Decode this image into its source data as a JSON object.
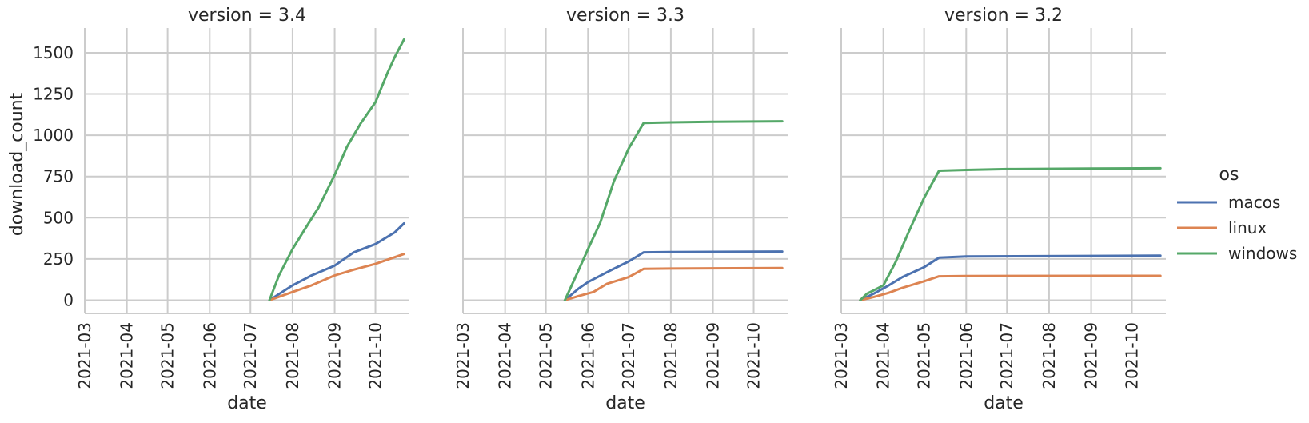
{
  "chart_data": [
    {
      "type": "line",
      "title": "version = 3.4",
      "xlabel": "date",
      "ylabel": "download_count",
      "xlim": [
        "2021-03-01",
        "2021-10-26"
      ],
      "ylim": [
        -80,
        1650
      ],
      "x_ticks": [
        "2021-03",
        "2021-04",
        "2021-05",
        "2021-06",
        "2021-07",
        "2021-08",
        "2021-09",
        "2021-10"
      ],
      "y_ticks": [
        0,
        250,
        500,
        750,
        1000,
        1250,
        1500
      ],
      "grid": true,
      "series": [
        {
          "name": "macos",
          "x": [
            "2021-07-15",
            "2021-08-01",
            "2021-08-15",
            "2021-09-01",
            "2021-09-15",
            "2021-10-01",
            "2021-10-15",
            "2021-10-22"
          ],
          "y": [
            0,
            90,
            150,
            210,
            290,
            340,
            410,
            465
          ]
        },
        {
          "name": "linux",
          "x": [
            "2021-07-15",
            "2021-08-01",
            "2021-08-15",
            "2021-09-01",
            "2021-09-15",
            "2021-10-01",
            "2021-10-15",
            "2021-10-22"
          ],
          "y": [
            0,
            50,
            90,
            150,
            185,
            220,
            260,
            280
          ]
        },
        {
          "name": "windows",
          "x": [
            "2021-07-15",
            "2021-07-22",
            "2021-08-01",
            "2021-08-10",
            "2021-08-20",
            "2021-09-01",
            "2021-09-10",
            "2021-09-20",
            "2021-10-01",
            "2021-10-10",
            "2021-10-15",
            "2021-10-22"
          ],
          "y": [
            0,
            150,
            310,
            430,
            560,
            760,
            930,
            1070,
            1200,
            1380,
            1470,
            1580
          ]
        }
      ]
    },
    {
      "type": "line",
      "title": "version = 3.3",
      "xlabel": "date",
      "ylabel": "",
      "xlim": [
        "2021-03-01",
        "2021-10-26"
      ],
      "ylim": [
        -80,
        1650
      ],
      "x_ticks": [
        "2021-03",
        "2021-04",
        "2021-05",
        "2021-06",
        "2021-07",
        "2021-08",
        "2021-09",
        "2021-10"
      ],
      "y_ticks": [
        0,
        250,
        500,
        750,
        1000,
        1250,
        1500
      ],
      "grid": true,
      "series": [
        {
          "name": "macos",
          "x": [
            "2021-05-15",
            "2021-05-25",
            "2021-06-01",
            "2021-06-15",
            "2021-07-01",
            "2021-07-12",
            "2021-08-01",
            "2021-10-22"
          ],
          "y": [
            0,
            70,
            110,
            170,
            235,
            290,
            292,
            295
          ]
        },
        {
          "name": "linux",
          "x": [
            "2021-05-15",
            "2021-05-25",
            "2021-06-05",
            "2021-06-15",
            "2021-07-01",
            "2021-07-12",
            "2021-08-01",
            "2021-10-22"
          ],
          "y": [
            0,
            25,
            50,
            100,
            140,
            190,
            192,
            195
          ]
        },
        {
          "name": "windows",
          "x": [
            "2021-05-15",
            "2021-05-25",
            "2021-06-01",
            "2021-06-10",
            "2021-06-20",
            "2021-07-01",
            "2021-07-12",
            "2021-08-01",
            "2021-09-01",
            "2021-10-22"
          ],
          "y": [
            0,
            180,
            310,
            470,
            720,
            920,
            1075,
            1078,
            1082,
            1085
          ]
        }
      ]
    },
    {
      "type": "line",
      "title": "version = 3.2",
      "xlabel": "date",
      "ylabel": "",
      "xlim": [
        "2021-03-01",
        "2021-10-26"
      ],
      "ylim": [
        -80,
        1650
      ],
      "x_ticks": [
        "2021-03",
        "2021-04",
        "2021-05",
        "2021-06",
        "2021-07",
        "2021-08",
        "2021-09",
        "2021-10"
      ],
      "y_ticks": [
        0,
        250,
        500,
        750,
        1000,
        1250,
        1500
      ],
      "grid": true,
      "series": [
        {
          "name": "macos",
          "x": [
            "2021-03-15",
            "2021-03-25",
            "2021-04-05",
            "2021-04-15",
            "2021-05-01",
            "2021-05-12",
            "2021-06-01",
            "2021-10-22"
          ],
          "y": [
            0,
            40,
            90,
            140,
            200,
            258,
            265,
            270
          ]
        },
        {
          "name": "linux",
          "x": [
            "2021-03-15",
            "2021-03-25",
            "2021-04-05",
            "2021-04-15",
            "2021-05-01",
            "2021-05-12",
            "2021-06-01",
            "2021-10-22"
          ],
          "y": [
            0,
            20,
            45,
            75,
            115,
            145,
            147,
            148
          ]
        },
        {
          "name": "windows",
          "x": [
            "2021-03-15",
            "2021-03-20",
            "2021-03-25",
            "2021-04-01",
            "2021-04-10",
            "2021-04-20",
            "2021-05-01",
            "2021-05-12",
            "2021-06-01",
            "2021-07-01",
            "2021-09-01",
            "2021-10-22"
          ],
          "y": [
            0,
            40,
            60,
            90,
            230,
            420,
            620,
            785,
            790,
            795,
            798,
            800
          ]
        }
      ]
    }
  ],
  "legend": {
    "title": "os",
    "placement": "right",
    "entries": [
      {
        "name": "macos",
        "color": "#4c72b0"
      },
      {
        "name": "linux",
        "color": "#dd8452"
      },
      {
        "name": "windows",
        "color": "#55a868"
      }
    ]
  }
}
